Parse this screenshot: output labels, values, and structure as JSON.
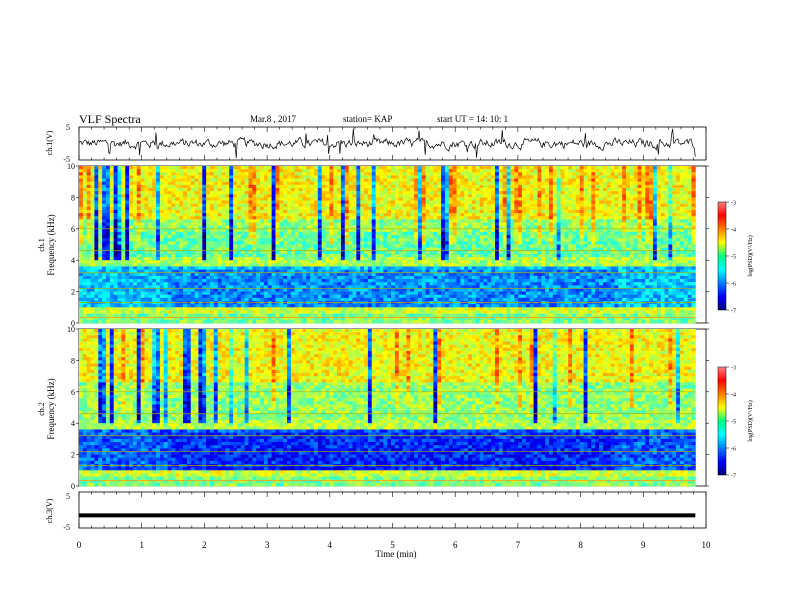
{
  "header": {
    "title": "VLF Spectra",
    "date": "Mar.8 , 2017",
    "station": "station= KAP",
    "start": "start UT = 14: 10: 1"
  },
  "chart_data": [
    {
      "type": "line",
      "name": "ch1-voltage",
      "ylabel": "ch.1(V)",
      "ylim": [
        -5,
        5
      ],
      "yticks": [
        "5",
        "-5"
      ],
      "xlim": [
        0,
        10
      ],
      "series": [
        {
          "x": [
            0,
            9.83
          ],
          "note_values": "noisy trace around 0 V, approx +/-2 V"
        }
      ]
    },
    {
      "type": "heatmap",
      "name": "ch1-spectrogram",
      "ylabel": "ch.1\nFrequency (kHz)",
      "ylim": [
        0,
        10
      ],
      "yticks": [
        "0",
        "2",
        "4",
        "6",
        "8",
        "10"
      ],
      "xlim": [
        0,
        9.83
      ],
      "colorbar": {
        "label": "log(PSD)(V²/Hz)",
        "range": [
          -7,
          -3
        ],
        "ticks": [
          "-3",
          "-4",
          "-5",
          "-6",
          "-7"
        ]
      }
    },
    {
      "type": "heatmap",
      "name": "ch2-spectrogram",
      "ylabel": "ch.2\nFrequency (kHz)",
      "ylim": [
        0,
        10
      ],
      "yticks": [
        "0",
        "2",
        "4",
        "6",
        "8",
        "10"
      ],
      "xlim": [
        0,
        9.83
      ],
      "colorbar": {
        "label": "log(PSD)(V²/Hz)",
        "range": [
          -7,
          -3
        ],
        "ticks": [
          "-3",
          "-4",
          "-5",
          "-6",
          "-7"
        ]
      }
    },
    {
      "type": "line",
      "name": "ch3-voltage",
      "ylabel": "ch.3(V)",
      "ylim": [
        -5,
        5
      ],
      "yticks": [
        "5",
        "-5"
      ],
      "series": [
        {
          "x": [
            0,
            9.83
          ],
          "y": [
            -1.5,
            -1.5
          ]
        }
      ]
    }
  ],
  "xaxis": {
    "label": "Time (min)",
    "ticks": [
      "0",
      "1",
      "2",
      "3",
      "4",
      "5",
      "6",
      "7",
      "8",
      "9",
      "10"
    ],
    "range": [
      0,
      10
    ]
  }
}
